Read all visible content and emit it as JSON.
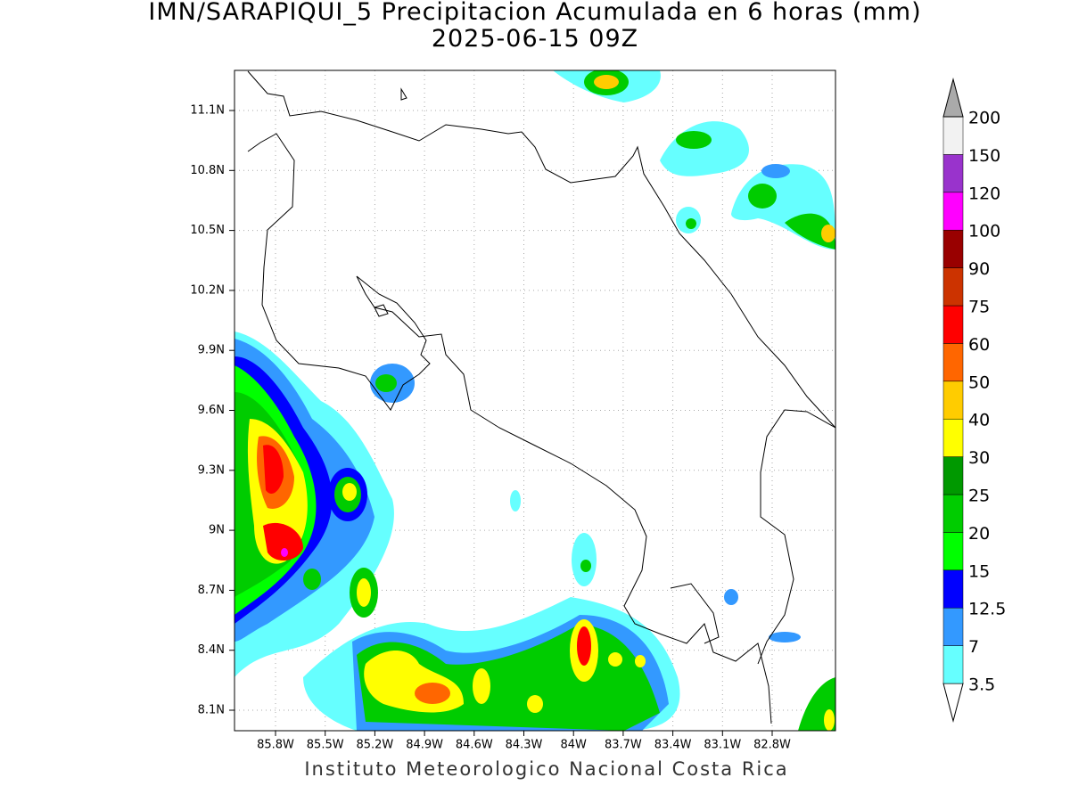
{
  "title": "IMN/SARAPIQUI_5 Precipitacion Acumulada en 6 horas (mm)",
  "subtitle": "2025-06-15 09Z",
  "x_axis": {
    "ticks": [
      "85.8W",
      "85.5W",
      "85.2W",
      "84.9W",
      "84.6W",
      "84.3W",
      "84W",
      "83.7W",
      "83.4W",
      "83.1W",
      "82.8W"
    ]
  },
  "y_axis": {
    "ticks": [
      "11.1N",
      "10.8N",
      "10.5N",
      "10.2N",
      "9.9N",
      "9.6N",
      "9.3N",
      "9N",
      "8.7N",
      "8.4N",
      "8.1N"
    ]
  },
  "colorbar": {
    "labels": [
      "3.5",
      "7",
      "12.5",
      "15",
      "20",
      "25",
      "30",
      "40",
      "50",
      "60",
      "75",
      "90",
      "100",
      "120",
      "150",
      "200"
    ],
    "colors": [
      "#66ffff",
      "#3399ff",
      "#0000ff",
      "#00ff00",
      "#00cc00",
      "#009900",
      "#ffff00",
      "#ffcc00",
      "#ff6600",
      "#ff0000",
      "#cc3300",
      "#990000",
      "#ff00ff",
      "#9933cc",
      "#f2f2f2"
    ]
  },
  "footer": "Instituto Meteorologico Nacional Costa Rica"
}
